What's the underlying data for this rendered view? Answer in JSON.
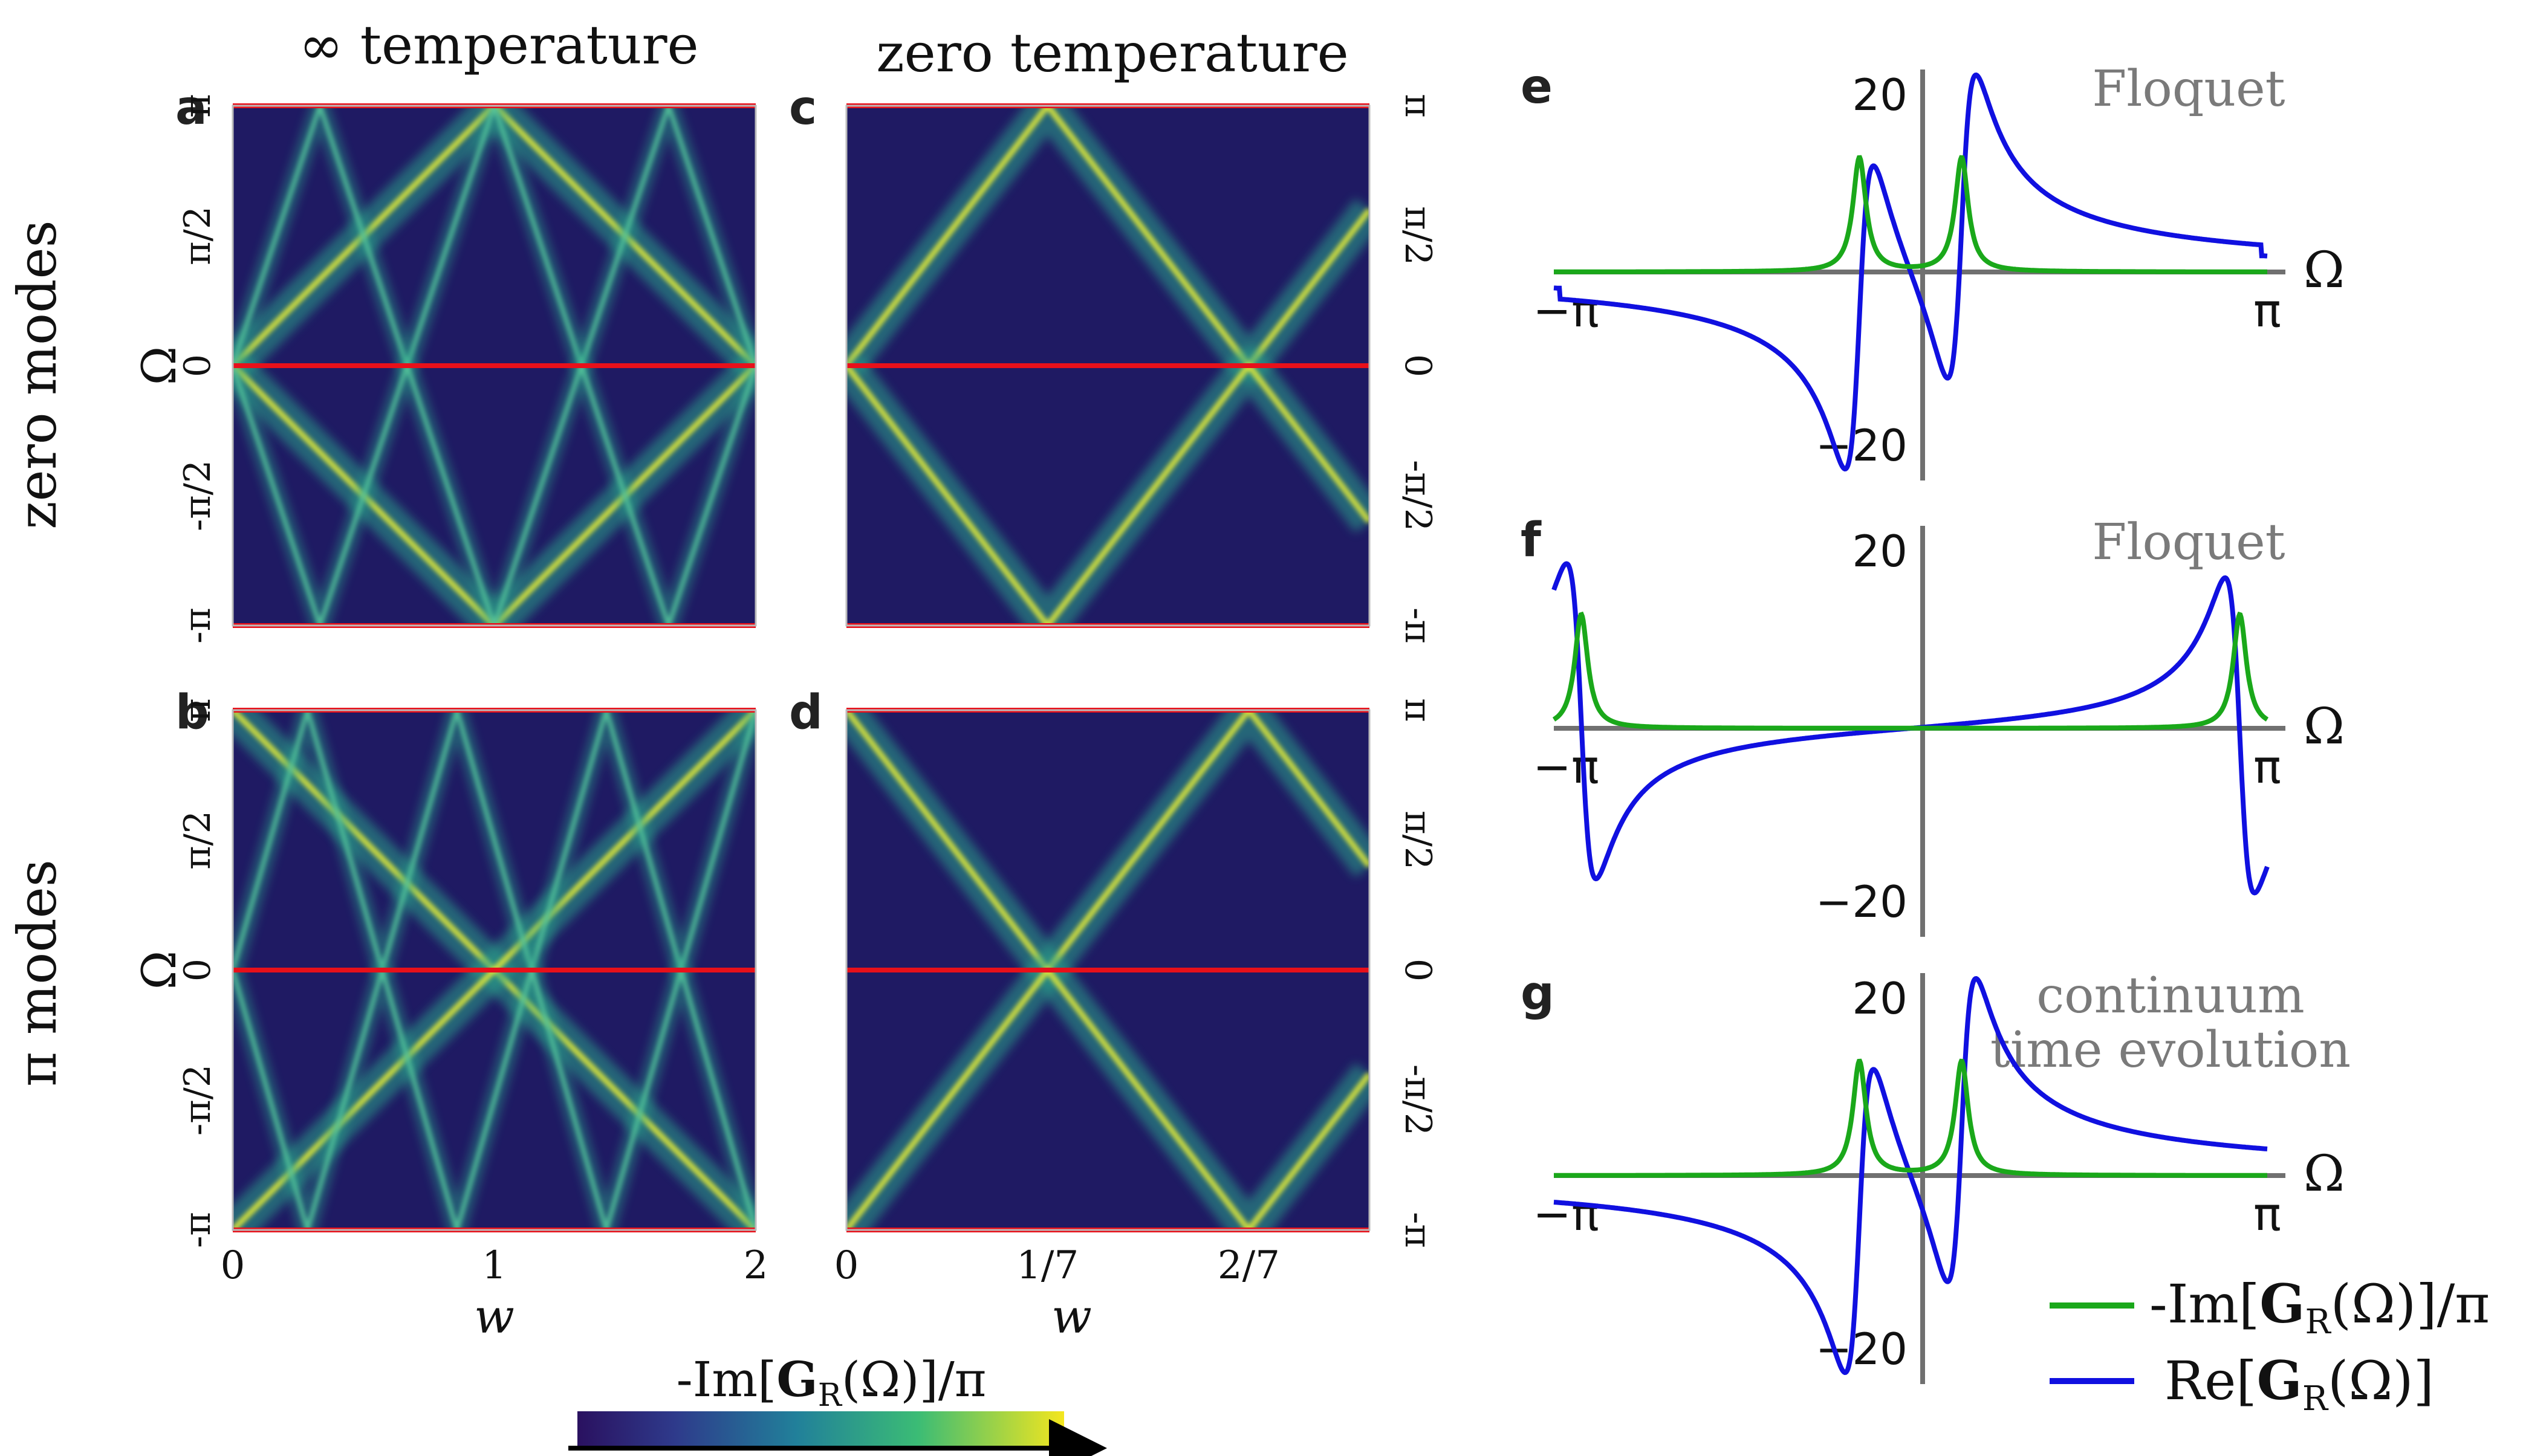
{
  "colors": {
    "viridis_low": "#440154",
    "viridis_dark": "#1b1464",
    "viridis_mid": "#21908c",
    "viridis_bright": "#f4e61e",
    "red_line": "#e8101a",
    "green": "#1aa81a",
    "blue": "#1010e0",
    "axis_gray": "#707070",
    "text": "#111111"
  },
  "column_titles": {
    "infinite_temperature": "∞ temperature",
    "zero_temperature": "zero temperature"
  },
  "row_titles": {
    "zero_modes": "zero modes",
    "pi_modes": "π modes"
  },
  "colorbar": {
    "label": "-Im[G_R(Ω)]/π",
    "label_text": "-Im[",
    "label_bold": "G",
    "label_sub": "R",
    "label_end": "(Ω)]/π"
  },
  "legend": {
    "entries": [
      {
        "pre": "-Im[",
        "bold": "G",
        "sub": "R",
        "post": "(Ω)]/π",
        "color": "#1aa81a"
      },
      {
        "pre": "Re[",
        "bold": "G",
        "sub": "R",
        "post": "(Ω)]",
        "color": "#1010e0"
      }
    ]
  },
  "chart_data": [
    {
      "panel": "a",
      "type": "heatmap",
      "xlabel": "w",
      "ylabel": "Ω",
      "xticks": [
        "0",
        "1",
        "2"
      ],
      "xlim": [
        0,
        2
      ],
      "yticks": [
        "-π",
        "-π/2",
        "0",
        "π/2",
        "π"
      ],
      "ylim": [
        -3.14159,
        3.14159
      ],
      "red_lines_at": [
        -3.14159,
        0,
        3.14159
      ]
    },
    {
      "panel": "b",
      "type": "heatmap",
      "xlabel": "w",
      "ylabel": "Ω",
      "xticks": [
        "0",
        "1",
        "2"
      ],
      "xlim": [
        0,
        2
      ],
      "yticks": [
        "-π",
        "-π/2",
        "0",
        "π/2",
        "π"
      ],
      "ylim": [
        -3.14159,
        3.14159
      ],
      "red_lines_at": [
        -3.14159,
        0,
        3.14159
      ]
    },
    {
      "panel": "c",
      "type": "heatmap",
      "xlabel": "w",
      "xticks": [
        "0",
        "1/7",
        "2/7"
      ],
      "xlim": [
        0,
        0.3714
      ],
      "yticks_right": [
        "-π",
        "-π/2",
        "0",
        "π/2",
        "π"
      ],
      "ylim": [
        -3.14159,
        3.14159
      ],
      "red_lines_at": [
        -3.14159,
        0,
        3.14159
      ]
    },
    {
      "panel": "d",
      "type": "heatmap",
      "xlabel": "w",
      "xticks": [
        "0",
        "1/7",
        "2/7"
      ],
      "xlim": [
        0,
        0.3714
      ],
      "yticks_right": [
        "-π",
        "-π/2",
        "0",
        "π/2",
        "π"
      ],
      "ylim": [
        -3.14159,
        3.14159
      ],
      "red_lines_at": [
        -3.14159,
        0,
        3.14159
      ]
    },
    {
      "panel": "e",
      "type": "line",
      "annotation": "Floquet",
      "xlabel": "Ω",
      "xticks": [
        "−π",
        "π"
      ],
      "xlim": [
        -3.14159,
        3.14159
      ],
      "yticks": [
        "20",
        "−20"
      ],
      "ylim": [
        -24,
        24
      ],
      "series": [
        {
          "name": "-Im[G_R(Ω)]/π",
          "color": "#1aa81a",
          "lorentzians": [
            [
              -0.45,
              0.07,
              13
            ],
            [
              0.45,
              0.07,
              13
            ]
          ]
        },
        {
          "name": "Re[G_R(Ω)]",
          "color": "#1010e0",
          "dispersive": [
            [
              -0.45,
              0.13,
              18
            ],
            [
              0.45,
              0.13,
              18
            ]
          ]
        }
      ]
    },
    {
      "panel": "f",
      "type": "line",
      "annotation": "Floquet",
      "xlabel": "Ω",
      "xticks": [
        "−π",
        "π"
      ],
      "xlim": [
        -3.14159,
        3.14159
      ],
      "yticks": [
        "20",
        "−20"
      ],
      "ylim": [
        -24,
        24
      ],
      "series": [
        {
          "name": "-Im[G_R(Ω)]/π",
          "color": "#1aa81a",
          "lorentzians": [
            [
              -2.9,
              0.07,
              13
            ],
            [
              2.9,
              0.07,
              13
            ]
          ]
        },
        {
          "name": "Re[G_R(Ω)]",
          "color": "#1010e0",
          "dispersive": [
            [
              -2.9,
              0.13,
              18
            ],
            [
              2.9,
              0.13,
              18
            ]
          ]
        }
      ]
    },
    {
      "panel": "g",
      "type": "line",
      "annotation_line1": "continuum",
      "annotation_line2": "time evolution",
      "xlabel": "Ω",
      "xticks": [
        "−π",
        "π"
      ],
      "xlim": [
        -3.14159,
        3.14159
      ],
      "yticks": [
        "20",
        "−20"
      ],
      "ylim": [
        -24,
        24
      ],
      "series": [
        {
          "name": "-Im[G_R(Ω)]/π",
          "color": "#1aa81a",
          "lorentzians": [
            [
              -0.45,
              0.07,
              13
            ],
            [
              0.45,
              0.07,
              13
            ]
          ]
        },
        {
          "name": "Re[G_R(Ω)]",
          "color": "#1010e0",
          "dispersive": [
            [
              -0.45,
              0.13,
              18
            ],
            [
              0.45,
              0.13,
              18
            ]
          ]
        }
      ]
    }
  ]
}
